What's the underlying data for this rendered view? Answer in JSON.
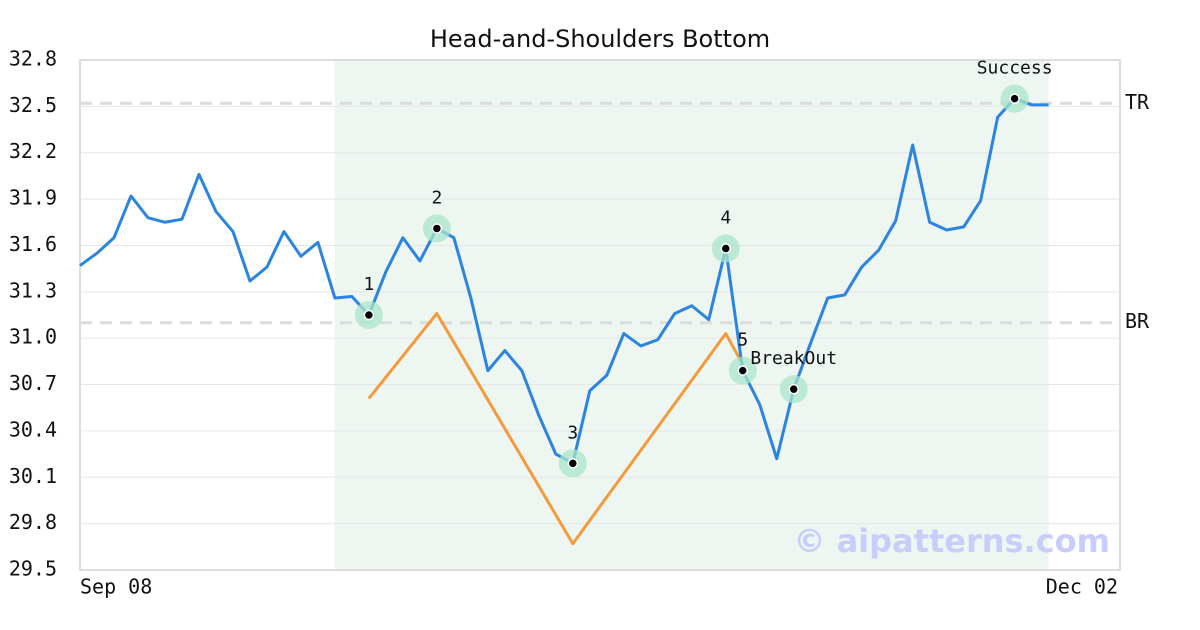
{
  "chart_data": {
    "type": "line",
    "title": "Head-and-Shoulders Bottom",
    "categories": [
      "Sep 08",
      null,
      null,
      null,
      null,
      null,
      null,
      null,
      null,
      null,
      null,
      null,
      null,
      null,
      null,
      null,
      null,
      null,
      null,
      null,
      null,
      null,
      null,
      null,
      null,
      null,
      null,
      null,
      null,
      null,
      null,
      null,
      null,
      null,
      null,
      null,
      null,
      null,
      null,
      null,
      null,
      null,
      null,
      null,
      null,
      null,
      null,
      null,
      null,
      null,
      null,
      null,
      null,
      null,
      null,
      null,
      null,
      "Dec 02"
    ],
    "xlim": [
      0,
      61.2
    ],
    "ylim": [
      29.5,
      32.8
    ],
    "yticks": [
      29.5,
      29.8,
      30.1,
      30.4,
      30.7,
      {
        "value": 31,
        "label": "31.0"
      },
      31.3,
      31.6,
      31.9,
      32.2,
      32.5,
      32.8
    ],
    "grid": true,
    "shaded_range": [
      15,
      57
    ],
    "shade_color": "#eef6f2",
    "series": [
      {
        "color": "#2b84e0",
        "values": [
          31.47,
          31.55,
          31.65,
          31.92,
          31.78,
          31.75,
          31.77,
          32.06,
          31.82,
          31.69,
          31.37,
          31.46,
          31.69,
          31.53,
          31.62,
          31.26,
          31.27,
          31.15,
          31.43,
          31.65,
          31.5,
          31.71,
          31.65,
          31.26,
          30.79,
          30.92,
          30.79,
          30.5,
          30.25,
          30.19,
          30.66,
          30.76,
          31.03,
          30.95,
          30.99,
          31.16,
          31.21,
          31.12,
          31.58,
          30.79,
          30.57,
          30.22,
          30.67,
          30.97,
          31.26,
          31.28,
          31.46,
          31.57,
          31.76,
          32.25,
          31.75,
          31.7,
          31.72,
          31.89,
          32.43,
          32.55,
          32.51,
          32.51
        ]
      },
      {
        "color": "#f59a3c",
        "x": [
          17,
          21,
          29,
          38,
          39
        ],
        "values": [
          30.61,
          31.16,
          29.67,
          31.03,
          30.83
        ]
      }
    ],
    "annotations": [
      {
        "index": 17,
        "label": "1"
      },
      {
        "index": 21,
        "label": "2"
      },
      {
        "index": 29,
        "label": "3"
      },
      {
        "index": 38,
        "label": "4"
      },
      {
        "index": 39,
        "label": "5"
      },
      {
        "index": 42,
        "label": "BreakOut"
      },
      {
        "index": 55,
        "label": "Success"
      }
    ],
    "reference_lines": [
      {
        "value": 32.52,
        "label": "TR"
      },
      {
        "value": 31.1,
        "label": "BR"
      }
    ],
    "watermark": "© aipatterns.com"
  }
}
